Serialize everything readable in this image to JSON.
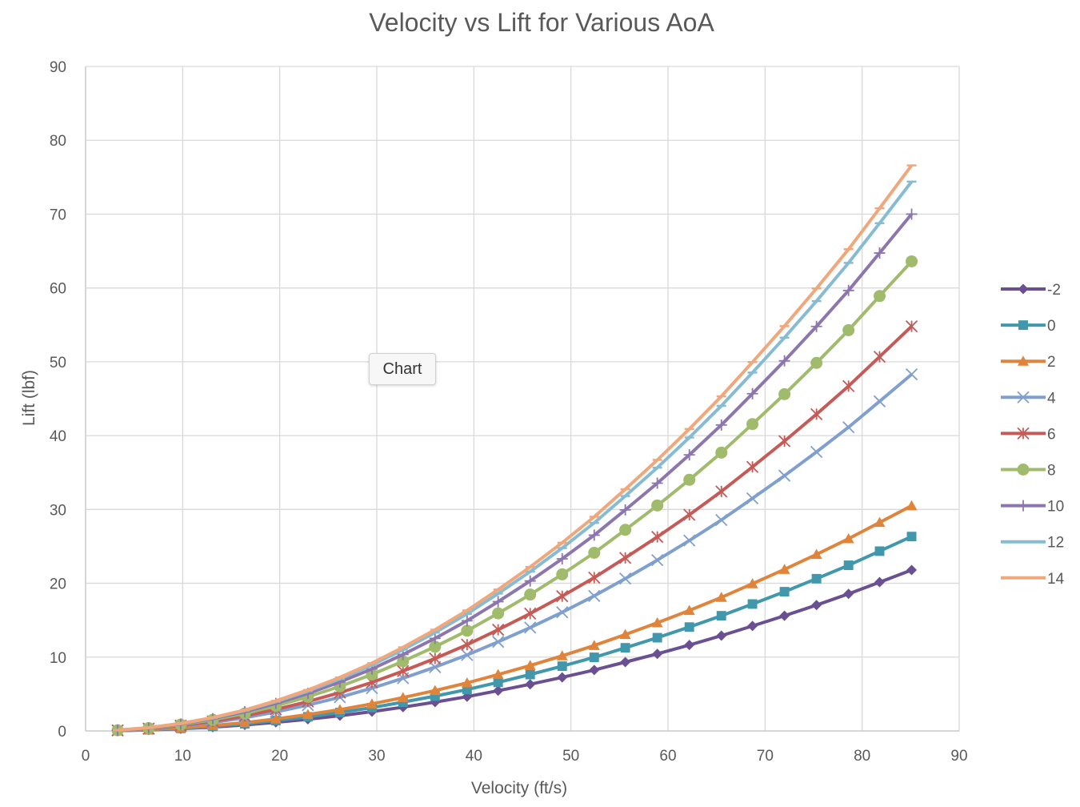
{
  "chart_data": {
    "type": "line",
    "title": "Velocity vs Lift for Various AoA",
    "xlabel": "Velocity (ft/s)",
    "ylabel": "Lift (lbf)",
    "xlim": [
      0,
      90
    ],
    "ylim": [
      0,
      90
    ],
    "xticks": [
      0,
      10,
      20,
      30,
      40,
      50,
      60,
      70,
      80,
      90
    ],
    "yticks": [
      0,
      10,
      20,
      30,
      40,
      50,
      60,
      70,
      80,
      90
    ],
    "grid": true,
    "legend_position": "right",
    "x": [
      3.3,
      6.5,
      9.8,
      13.1,
      16.4,
      19.6,
      22.9,
      26.2,
      29.5,
      32.7,
      36.0,
      39.3,
      42.5,
      45.8,
      49.1,
      52.4,
      55.6,
      58.9,
      62.2,
      65.5,
      68.7,
      72.0,
      75.3,
      78.6,
      81.8,
      85.1
    ],
    "series": [
      {
        "name": "-2",
        "color": "#6a5092",
        "marker": "diamond",
        "values": [
          0.03,
          0.13,
          0.29,
          0.52,
          0.81,
          1.16,
          1.58,
          2.06,
          2.61,
          3.22,
          3.9,
          4.64,
          5.45,
          6.32,
          7.25,
          8.25,
          9.32,
          10.44,
          11.64,
          12.9,
          14.22,
          15.6,
          17.05,
          18.57,
          20.15,
          21.8
        ]
      },
      {
        "name": "0",
        "color": "#4197ab",
        "marker": "square",
        "values": [
          0.04,
          0.16,
          0.35,
          0.62,
          0.97,
          1.4,
          1.91,
          2.49,
          3.16,
          3.9,
          4.72,
          5.61,
          6.58,
          7.64,
          8.77,
          9.97,
          11.26,
          12.63,
          14.07,
          15.6,
          17.19,
          18.86,
          20.62,
          22.44,
          24.35,
          26.33
        ]
      },
      {
        "name": "2",
        "color": "#e0843b",
        "marker": "triangle",
        "values": [
          0.05,
          0.18,
          0.41,
          0.73,
          1.13,
          1.63,
          2.22,
          2.89,
          3.66,
          4.52,
          5.47,
          6.51,
          7.64,
          8.86,
          10.17,
          11.57,
          13.06,
          14.65,
          16.32,
          18.09,
          19.94,
          21.88,
          23.91,
          26.03,
          28.24,
          30.5
        ]
      },
      {
        "name": "4",
        "color": "#7f9fcf",
        "marker": "x",
        "values": [
          0.07,
          0.29,
          0.64,
          1.14,
          1.79,
          2.57,
          3.5,
          4.57,
          5.79,
          7.14,
          8.64,
          10.29,
          12.07,
          14.0,
          16.07,
          18.29,
          20.64,
          23.14,
          25.79,
          28.57,
          31.5,
          34.57,
          37.79,
          41.14,
          44.64,
          48.3
        ]
      },
      {
        "name": "6",
        "color": "#c55a57",
        "marker": "star",
        "values": [
          0.08,
          0.33,
          0.73,
          1.3,
          2.03,
          2.92,
          3.98,
          5.19,
          6.57,
          8.11,
          9.81,
          11.68,
          13.71,
          15.9,
          18.25,
          20.76,
          23.44,
          26.28,
          29.28,
          32.44,
          35.76,
          39.25,
          42.9,
          46.71,
          50.68,
          54.8
        ]
      },
      {
        "name": "8",
        "color": "#9fbb6b",
        "marker": "circle",
        "values": [
          0.09,
          0.38,
          0.85,
          1.51,
          2.36,
          3.39,
          4.62,
          6.03,
          7.64,
          9.43,
          11.41,
          13.57,
          15.93,
          18.47,
          21.21,
          24.13,
          27.24,
          30.54,
          34.02,
          37.7,
          41.56,
          45.61,
          49.85,
          54.28,
          58.9,
          63.6
        ]
      },
      {
        "name": "10",
        "color": "#8c76ad",
        "marker": "plus",
        "values": [
          0.1,
          0.41,
          0.93,
          1.66,
          2.59,
          3.73,
          5.08,
          6.63,
          8.39,
          10.36,
          12.54,
          14.92,
          17.51,
          20.31,
          23.31,
          26.52,
          29.94,
          33.56,
          37.4,
          41.44,
          45.68,
          50.13,
          54.79,
          59.66,
          64.73,
          70.0
        ]
      },
      {
        "name": "12",
        "color": "#86bcd3",
        "marker": "dash",
        "values": [
          0.11,
          0.44,
          0.99,
          1.76,
          2.75,
          3.96,
          5.39,
          7.05,
          8.92,
          11.01,
          13.32,
          15.85,
          18.61,
          21.58,
          24.77,
          28.18,
          31.81,
          35.66,
          39.74,
          44.03,
          48.54,
          53.27,
          58.22,
          63.39,
          68.77,
          74.4
        ]
      },
      {
        "name": "14",
        "color": "#f0a77c",
        "marker": "dash",
        "values": [
          0.11,
          0.45,
          1.02,
          1.81,
          2.83,
          4.08,
          5.55,
          7.25,
          9.18,
          11.33,
          13.71,
          16.32,
          19.15,
          22.21,
          25.49,
          29.01,
          32.74,
          36.71,
          40.9,
          45.32,
          49.96,
          54.83,
          59.93,
          65.25,
          70.79,
          76.6
        ]
      }
    ]
  },
  "tooltip": {
    "label": "Chart"
  }
}
